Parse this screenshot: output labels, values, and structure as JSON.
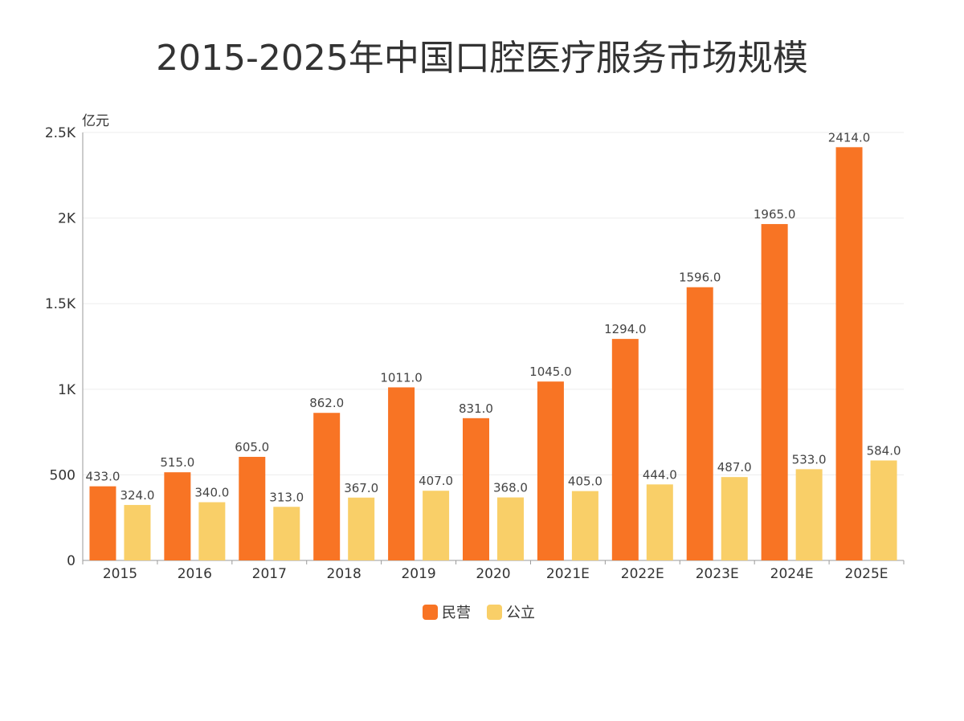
{
  "chart_data": {
    "type": "bar",
    "title": "2015-2025年中国口腔医疗服务市场规模",
    "ylabel": "亿元",
    "xlabel": "",
    "categories": [
      "2015",
      "2016",
      "2017",
      "2018",
      "2019",
      "2020",
      "2021E",
      "2022E",
      "2023E",
      "2024E",
      "2025E"
    ],
    "series": [
      {
        "name": "民营",
        "color": "#f87424",
        "values": [
          433.0,
          515.0,
          605.0,
          862.0,
          1011.0,
          831.0,
          1045.0,
          1294.0,
          1596.0,
          1965.0,
          2414.0
        ],
        "labels": [
          "433.0",
          "515.0",
          "605.0",
          "862.0",
          "1011.0",
          "831.0",
          "1045.0",
          "1294.0",
          "1596.0",
          "1965.0",
          "2414.0"
        ]
      },
      {
        "name": "公立",
        "color": "#f9cf68",
        "values": [
          324.0,
          340.0,
          313.0,
          367.0,
          407.0,
          368.0,
          405.0,
          444.0,
          487.0,
          533.0,
          584.0
        ],
        "labels": [
          "324.0",
          "340.0",
          "313.0",
          "367.0",
          "407.0",
          "368.0",
          "405.0",
          "444.0",
          "487.0",
          "533.0",
          "584.0"
        ]
      }
    ],
    "ylim": [
      0,
      2500
    ],
    "yticks": [
      0,
      500,
      1000,
      1500,
      2000,
      2500
    ],
    "ytick_labels": [
      "0",
      "500",
      "1K",
      "1.5K",
      "2K",
      "2.5K"
    ],
    "grid": true,
    "legend_position": "bottom-center"
  }
}
